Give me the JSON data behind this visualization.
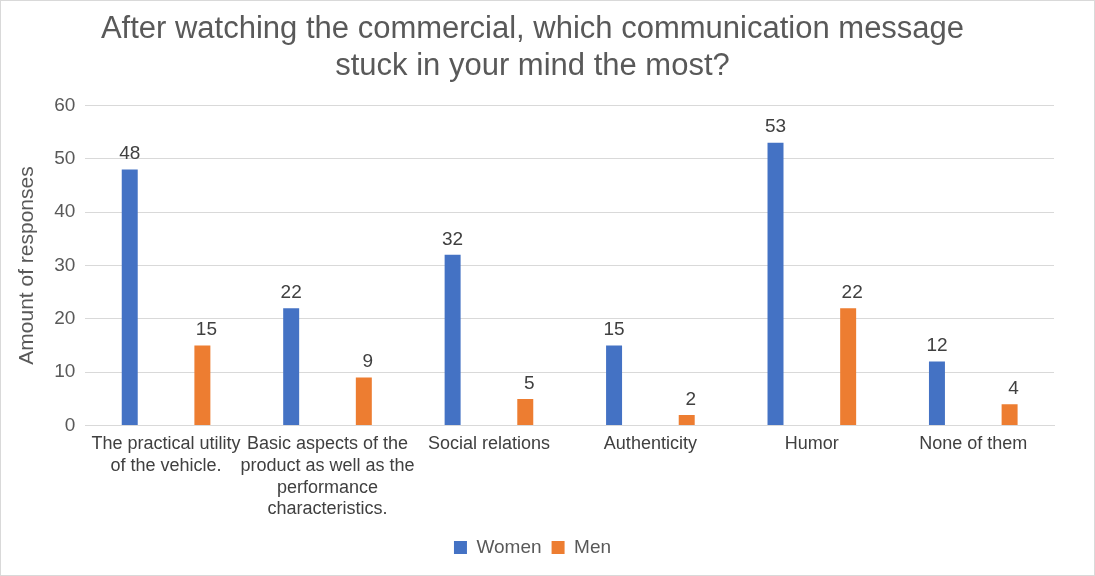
{
  "chart_data": {
    "type": "bar",
    "title": "After watching the commercial, which communication message stuck in your mind the most?",
    "ylabel": "Amount of responses",
    "categories": [
      "The practical utility of the vehicle.",
      "Basic aspects of the product as well as the performance characteristics.",
      "Social relations",
      "Authenticity",
      "Humor",
      "None of them"
    ],
    "series": [
      {
        "name": "Women",
        "color": "#4472c4",
        "values": [
          48,
          22,
          32,
          15,
          53,
          12
        ]
      },
      {
        "name": "Men",
        "color": "#ed7d31",
        "values": [
          15,
          9,
          5,
          2,
          22,
          4
        ]
      }
    ],
    "ylim": [
      0,
      60
    ],
    "yticks": [
      0,
      10,
      20,
      30,
      40,
      50,
      60
    ],
    "grid": "y",
    "legend": "bottom",
    "data_labels": true
  }
}
